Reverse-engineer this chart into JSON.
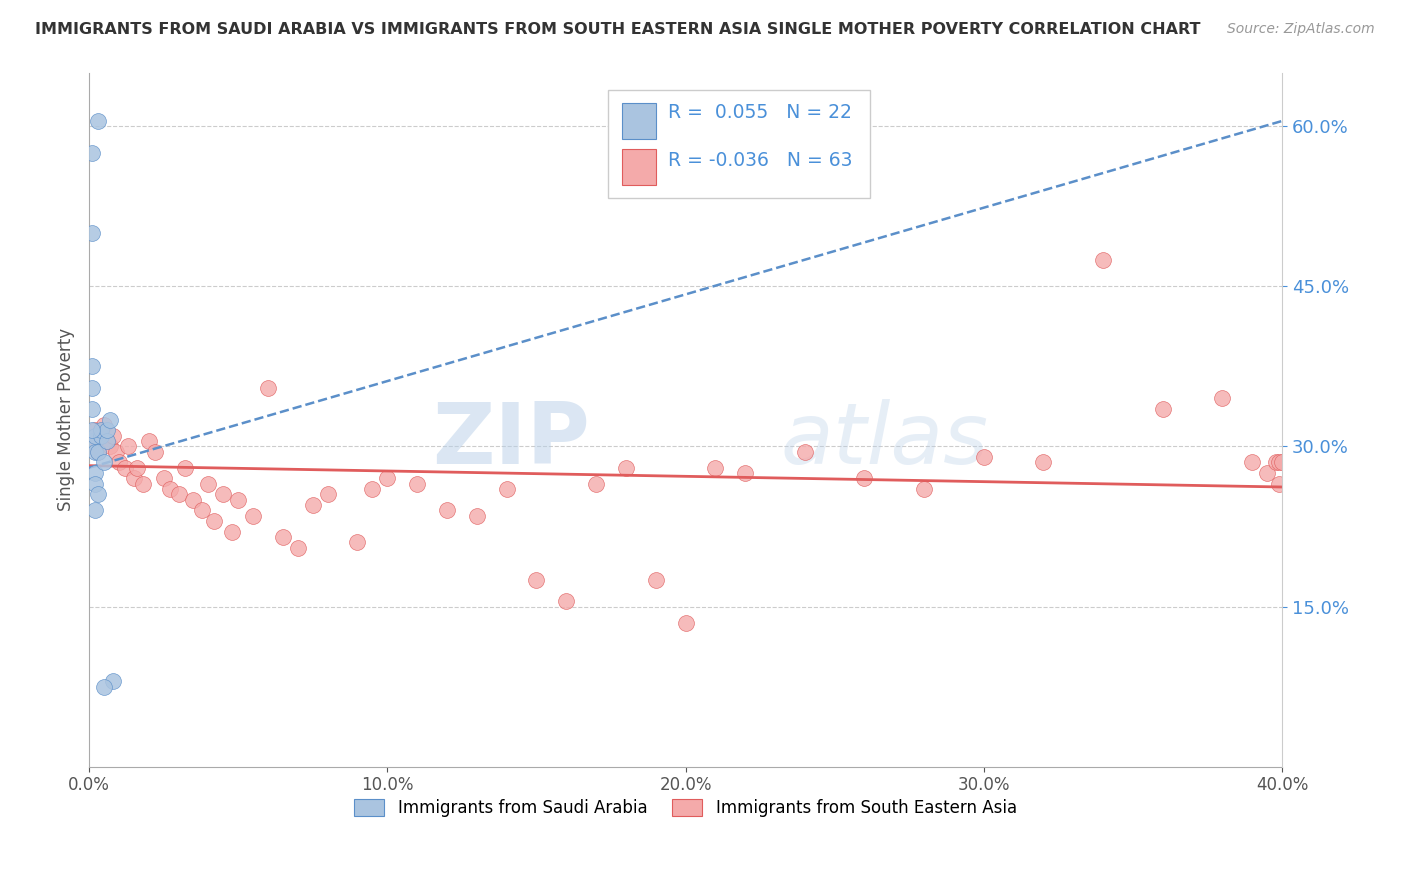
{
  "title": "IMMIGRANTS FROM SAUDI ARABIA VS IMMIGRANTS FROM SOUTH EASTERN ASIA SINGLE MOTHER POVERTY CORRELATION CHART",
  "source": "Source: ZipAtlas.com",
  "xlabel_blue": "Immigrants from Saudi Arabia",
  "xlabel_pink": "Immigrants from South Eastern Asia",
  "ylabel": "Single Mother Poverty",
  "xmin": 0.0,
  "xmax": 0.4,
  "ymin": 0.0,
  "ymax": 0.65,
  "yticks": [
    0.15,
    0.3,
    0.45,
    0.6
  ],
  "xticks": [
    0.0,
    0.1,
    0.2,
    0.3,
    0.4
  ],
  "r_blue": 0.055,
  "n_blue": 22,
  "r_pink": -0.036,
  "n_pink": 63,
  "color_blue": "#aac4e0",
  "color_blue_line": "#5b8fc9",
  "color_pink": "#f4aaaa",
  "color_pink_line": "#e05c5c",
  "background": "#ffffff",
  "watermark_zip": "ZIP",
  "watermark_atlas": "atlas",
  "blue_line_x": [
    0.0,
    0.4
  ],
  "blue_line_y": [
    0.28,
    0.605
  ],
  "pink_line_x": [
    0.0,
    0.4
  ],
  "pink_line_y": [
    0.282,
    0.262
  ],
  "blue_points_x": [
    0.001,
    0.001,
    0.001,
    0.001,
    0.001,
    0.002,
    0.002,
    0.002,
    0.002,
    0.003,
    0.003,
    0.004,
    0.004,
    0.005,
    0.006,
    0.006,
    0.007,
    0.008,
    0.001,
    0.001,
    0.002,
    0.003
  ],
  "blue_points_y": [
    0.575,
    0.5,
    0.375,
    0.335,
    0.305,
    0.31,
    0.295,
    0.275,
    0.265,
    0.255,
    0.295,
    0.31,
    0.315,
    0.285,
    0.305,
    0.315,
    0.325,
    0.08,
    0.355,
    0.315,
    0.24,
    0.605
  ],
  "blue_solo_low_x": [
    0.005
  ],
  "blue_solo_low_y": [
    0.075
  ],
  "pink_points_x": [
    0.001,
    0.002,
    0.003,
    0.004,
    0.005,
    0.006,
    0.007,
    0.008,
    0.009,
    0.01,
    0.012,
    0.013,
    0.015,
    0.016,
    0.018,
    0.02,
    0.022,
    0.025,
    0.027,
    0.03,
    0.032,
    0.035,
    0.038,
    0.04,
    0.042,
    0.045,
    0.048,
    0.05,
    0.055,
    0.06,
    0.065,
    0.07,
    0.075,
    0.08,
    0.09,
    0.095,
    0.1,
    0.11,
    0.12,
    0.13,
    0.14,
    0.15,
    0.16,
    0.17,
    0.18,
    0.19,
    0.2,
    0.21,
    0.22,
    0.24,
    0.26,
    0.28,
    0.3,
    0.32,
    0.34,
    0.36,
    0.38,
    0.39,
    0.395,
    0.398,
    0.399,
    0.399,
    0.4
  ],
  "pink_points_y": [
    0.305,
    0.315,
    0.295,
    0.315,
    0.32,
    0.305,
    0.3,
    0.31,
    0.295,
    0.285,
    0.28,
    0.3,
    0.27,
    0.28,
    0.265,
    0.305,
    0.295,
    0.27,
    0.26,
    0.255,
    0.28,
    0.25,
    0.24,
    0.265,
    0.23,
    0.255,
    0.22,
    0.25,
    0.235,
    0.355,
    0.215,
    0.205,
    0.245,
    0.255,
    0.21,
    0.26,
    0.27,
    0.265,
    0.24,
    0.235,
    0.26,
    0.175,
    0.155,
    0.265,
    0.28,
    0.175,
    0.135,
    0.28,
    0.275,
    0.295,
    0.27,
    0.26,
    0.29,
    0.285,
    0.475,
    0.335,
    0.345,
    0.285,
    0.275,
    0.285,
    0.285,
    0.265,
    0.285
  ]
}
